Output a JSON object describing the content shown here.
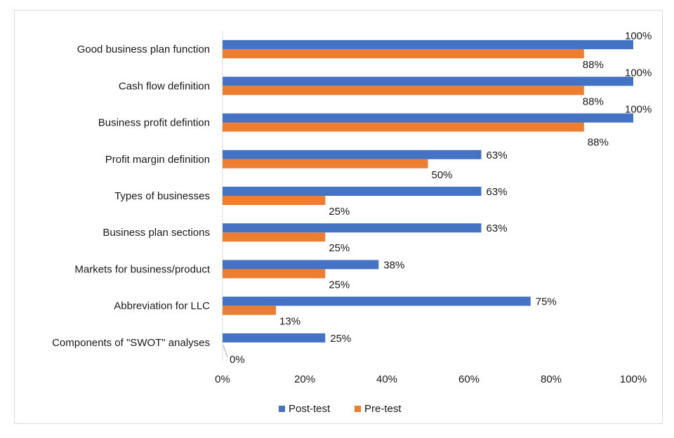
{
  "chart_data": {
    "type": "bar",
    "orientation": "horizontal",
    "categories": [
      "Good business plan function",
      "Cash flow definition",
      "Business profit defintion",
      "Profit margin definition",
      "Types of businesses",
      "Business plan sections",
      "Markets for business/product",
      "Abbreviation for LLC ",
      "Components of \"SWOT\" analyses"
    ],
    "series": [
      {
        "name": "Post-test",
        "color": "#4472C4",
        "values": [
          100,
          100,
          100,
          63,
          63,
          63,
          38,
          75,
          25
        ],
        "labels": [
          "100%",
          "100%",
          "100%",
          "63%",
          "63%",
          "63%",
          "38%",
          "75%",
          "25%"
        ]
      },
      {
        "name": "Pre-test",
        "color": "#ED7D31",
        "values": [
          88,
          88,
          88,
          50,
          25,
          25,
          25,
          13,
          0
        ],
        "labels": [
          "88%",
          "88%",
          "88%",
          "50%",
          "25%",
          "25%",
          "25%",
          "13%",
          "0%"
        ]
      }
    ],
    "xlim": [
      0,
      100
    ],
    "xticks": [
      "0%",
      "20%",
      "40%",
      "60%",
      "80%",
      "100%"
    ],
    "grid": false,
    "legend": "bottom",
    "title": "",
    "xlabel": "",
    "ylabel": ""
  }
}
